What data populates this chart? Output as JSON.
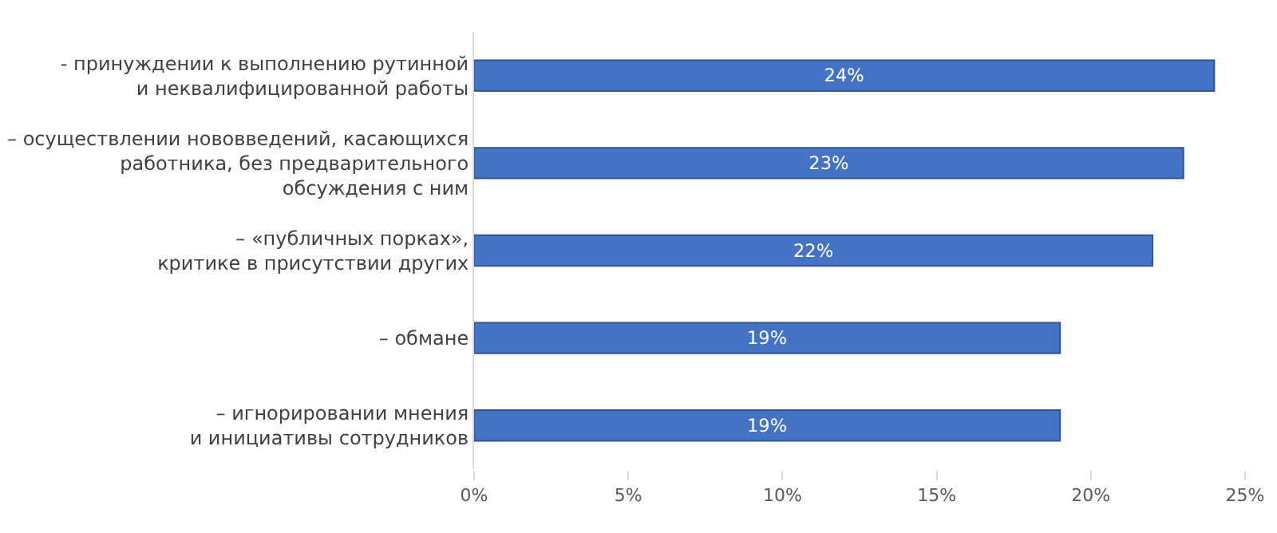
{
  "chart_data": {
    "type": "bar",
    "orientation": "horizontal",
    "categories": [
      "- принуждении к выполнению рутинной\nи неквалифицированной работы",
      "– осуществлении нововведений, касающихся\nработника, без предварительного\nобсуждения с ним",
      "– «публичных порках»,\nкритике в присутствии других",
      "– обмане",
      "– игнорировании мнения\nи инициативы сотрудников"
    ],
    "values": [
      24,
      23,
      22,
      19,
      19
    ],
    "value_labels": [
      "24%",
      "23%",
      "22%",
      "19%",
      "19%"
    ],
    "color": "#4472c4",
    "xlim": [
      0,
      25
    ],
    "xticks": [
      {
        "value": 0,
        "label": "0%"
      },
      {
        "value": 5,
        "label": "5%"
      },
      {
        "value": 10,
        "label": "10%"
      },
      {
        "value": 15,
        "label": "15%"
      },
      {
        "value": 20,
        "label": "20%"
      },
      {
        "value": 25,
        "label": "25%"
      }
    ],
    "grid": false,
    "legend": false
  }
}
